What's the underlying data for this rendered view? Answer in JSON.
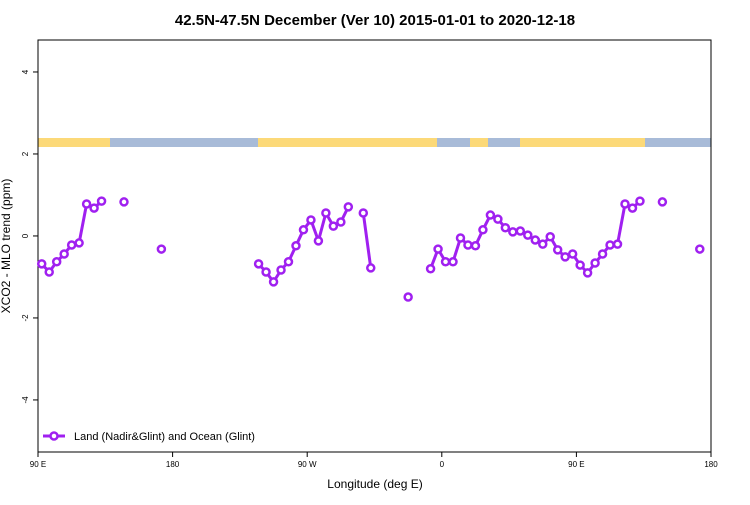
{
  "chart_data": {
    "type": "line",
    "title": "42.5N-47.5N December (Ver 10)   2015-01-01 to 2020-12-18",
    "x_label": "Longitude (deg E)",
    "y_label": "XCO2 - MLO trend (ppm)",
    "xlim": [
      90,
      540
    ],
    "ylim": [
      -5.27,
      4.78
    ],
    "xticks": [
      {
        "value": 90,
        "label": "90 E"
      },
      180,
      {
        "value": 270,
        "label": "90 W"
      },
      {
        "value": 360,
        "label": "0"
      },
      {
        "value": 450,
        "label": "90 E"
      },
      {
        "value": 540,
        "label": "180"
      }
    ],
    "yticks": [
      -4,
      -2,
      0,
      2,
      4
    ],
    "legend": "bottom-left",
    "series": [
      {
        "name": "Land (Nadir&Glint) and Ocean (Glint)",
        "color": "#a020f0",
        "x": [
          92.5,
          97.5,
          102.5,
          107.5,
          112.5,
          117.5,
          122.5,
          127.5,
          132.5,
          null,
          147.5,
          null,
          172.5,
          null,
          237.5,
          242.5,
          247.5,
          252.5,
          257.5,
          262.5,
          267.5,
          272.5,
          277.5,
          282.5,
          287.5,
          292.5,
          297.5,
          null,
          307.5,
          312.5,
          null,
          337.5,
          null,
          352.5,
          357.5,
          362.5,
          367.5,
          372.5,
          377.5,
          382.5,
          387.5,
          392.5,
          397.5,
          402.5,
          407.5,
          412.5,
          417.5,
          422.5,
          427.5,
          432.5,
          437.5,
          442.5,
          447.5,
          452.5,
          457.5,
          462.5,
          467.5,
          472.5,
          477.5,
          482.5,
          487.5,
          492.5,
          null,
          507.5,
          null,
          532.5
        ],
        "values": [
          -0.68,
          -0.88,
          -0.63,
          -0.44,
          -0.22,
          -0.17,
          0.78,
          0.68,
          0.85,
          null,
          0.83,
          null,
          -0.32,
          null,
          -0.68,
          -0.88,
          -1.12,
          -0.83,
          -0.63,
          -0.24,
          0.15,
          0.39,
          -0.12,
          0.56,
          0.24,
          0.34,
          0.71,
          null,
          0.56,
          -0.78,
          null,
          -1.49,
          null,
          -0.8,
          -0.32,
          -0.63,
          -0.63,
          -0.05,
          -0.22,
          -0.24,
          0.15,
          0.51,
          0.41,
          0.2,
          0.1,
          0.12,
          0.02,
          -0.1,
          -0.2,
          -0.02,
          -0.34,
          -0.51,
          -0.44,
          -0.71,
          -0.9,
          -0.66,
          -0.44,
          -0.22,
          -0.2,
          0.78,
          0.68,
          0.85,
          null,
          0.83,
          null,
          -0.32
        ]
      }
    ]
  }
}
